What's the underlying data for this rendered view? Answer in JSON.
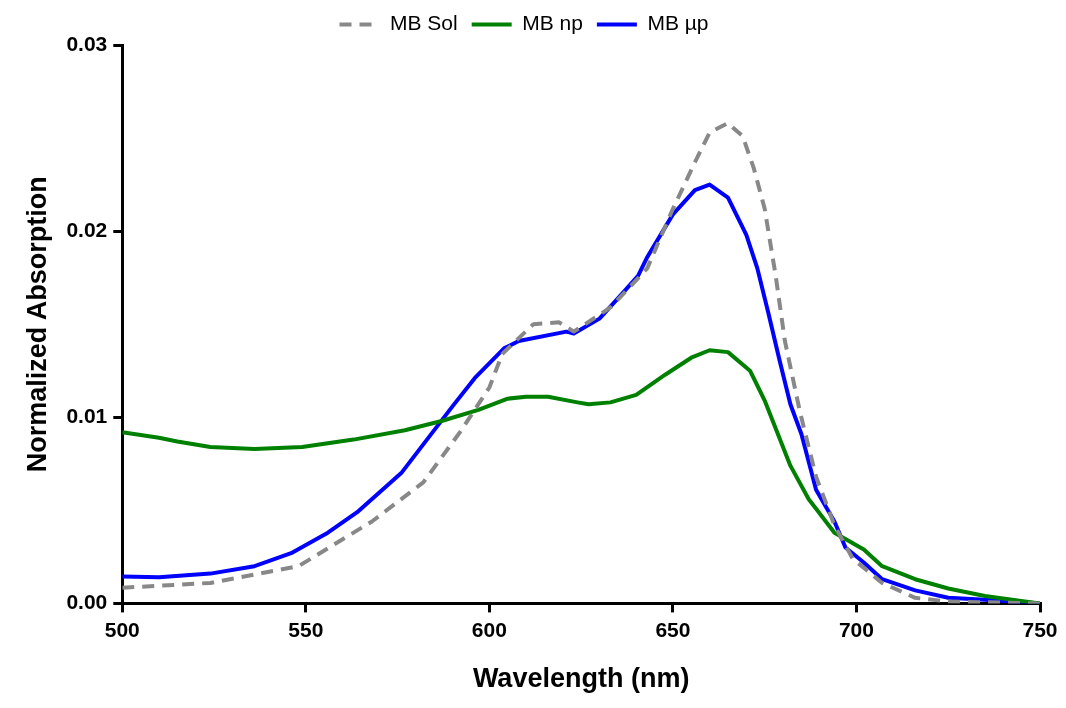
{
  "chart_data": {
    "type": "line",
    "xlabel": "Wavelength (nm)",
    "ylabel": "Normalized Absorption",
    "xlim": [
      500,
      750
    ],
    "xticks": [
      500,
      550,
      600,
      650,
      700,
      750
    ],
    "ylim": [
      0,
      0.03
    ],
    "yticks": [
      {
        "value": 0,
        "label": "0.00"
      },
      {
        "value": 0.01,
        "label": "0.01"
      },
      {
        "value": 0.02,
        "label": "0.02"
      },
      {
        "value": 0.03,
        "label": "0.03"
      }
    ],
    "grid": false,
    "legend": "top",
    "marker": "none",
    "series": [
      {
        "name": "MB Sol",
        "color": "#888888",
        "line_style": "dashed",
        "x": [
          500,
          524,
          548,
          568,
          582,
          592,
          600,
          603.5,
          612,
          619,
          623,
          633,
          643,
          650,
          656,
          660,
          665,
          669,
          672,
          675,
          678,
          680.5,
          684.6,
          689,
          694,
          699,
          707,
          716,
          725,
          750
        ],
        "values": [
          0.00084,
          0.0011,
          0.002,
          0.0044,
          0.0065,
          0.0092,
          0.0116,
          0.0134,
          0.015,
          0.0151,
          0.0146,
          0.0159,
          0.018,
          0.0212,
          0.0237,
          0.0253,
          0.0258,
          0.0251,
          0.0234,
          0.0212,
          0.0176,
          0.0141,
          0.0103,
          0.0068,
          0.0042,
          0.0024,
          0.0011,
          0.0003,
          0.0001,
          0
        ]
      },
      {
        "name": "MB np",
        "color": "#008000",
        "line_style": "solid",
        "x": [
          500,
          510,
          515,
          524,
          536,
          549,
          563,
          577,
          587,
          597,
          605,
          610,
          616,
          624,
          627,
          633,
          640,
          648,
          655,
          660,
          665,
          671,
          675,
          682,
          687,
          694,
          702,
          707,
          716,
          725,
          735,
          750
        ],
        "values": [
          0.0092,
          0.0089,
          0.0087,
          0.0084,
          0.0083,
          0.0084,
          0.0088,
          0.0093,
          0.0098,
          0.0104,
          0.011,
          0.0111,
          0.0111,
          0.0108,
          0.0107,
          0.0108,
          0.0112,
          0.0123,
          0.0132,
          0.0136,
          0.0135,
          0.0125,
          0.0109,
          0.0074,
          0.0056,
          0.0038,
          0.0029,
          0.002,
          0.0013,
          0.0008,
          0.0004,
          0
        ]
      },
      {
        "name": "MB µp",
        "color": "#0000ff",
        "line_style": "solid",
        "x": [
          500,
          510,
          524,
          536,
          546,
          556,
          564,
          576,
          583,
          590,
          596,
          604,
          608,
          621,
          623,
          630,
          636,
          640.5,
          643,
          650,
          656,
          660,
          665,
          670,
          673,
          676,
          679,
          682,
          685,
          689,
          694,
          697,
          702,
          707,
          716,
          725,
          735,
          750
        ],
        "values": [
          0.00145,
          0.0014,
          0.0016,
          0.002,
          0.0027,
          0.0038,
          0.0049,
          0.007,
          0.0088,
          0.0106,
          0.0121,
          0.0137,
          0.0141,
          0.0146,
          0.0145,
          0.0153,
          0.0166,
          0.0176,
          0.0186,
          0.0209,
          0.0222,
          0.0225,
          0.0218,
          0.0198,
          0.018,
          0.0156,
          0.0131,
          0.0107,
          0.0091,
          0.0061,
          0.0044,
          0.003,
          0.0022,
          0.0013,
          0.0007,
          0.0003,
          0.0002,
          0
        ]
      }
    ]
  }
}
